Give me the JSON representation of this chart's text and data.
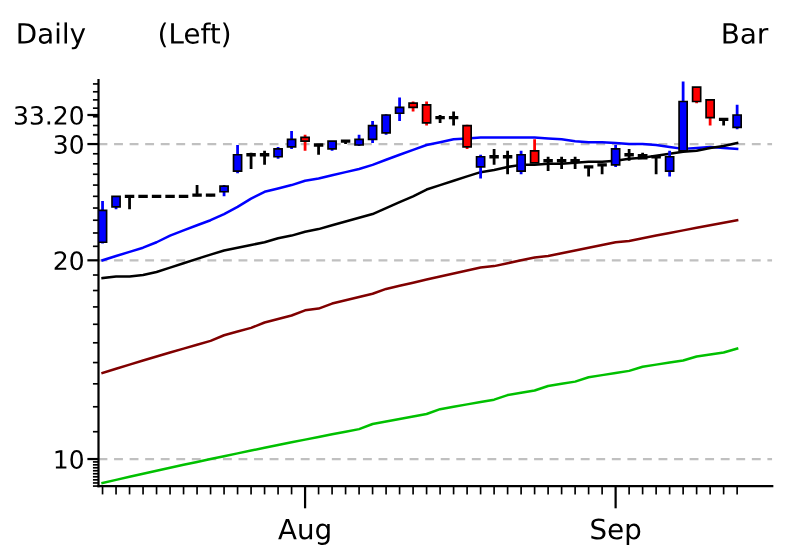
{
  "chart_data": {
    "type": "candlestick",
    "title": "Daily",
    "annotations": [
      "(Left)",
      "Bar"
    ],
    "categories": [
      null,
      null,
      null,
      null,
      null,
      null,
      null,
      null,
      null,
      null,
      null,
      null,
      null,
      null,
      null,
      "Aug",
      null,
      null,
      null,
      null,
      null,
      null,
      null,
      null,
      null,
      null,
      null,
      null,
      null,
      null,
      null,
      null,
      null,
      null,
      null,
      null,
      null,
      null,
      "Sep",
      null,
      null,
      null,
      null,
      null,
      null,
      null,
      null,
      null
    ],
    "ohlc": [
      [
        21.3,
        24.6,
        21.2,
        23.8
      ],
      [
        24.1,
        25.0,
        23.9,
        25.0
      ],
      [
        25.0,
        25.1,
        23.9,
        25.0
      ],
      [
        25.0,
        25.1,
        24.9,
        25.0
      ],
      [
        25.0,
        25.1,
        24.9,
        25.0
      ],
      [
        25.0,
        25.1,
        24.9,
        25.0
      ],
      [
        25.0,
        25.1,
        24.9,
        25.0
      ],
      [
        25.1,
        26.0,
        25.0,
        25.1
      ],
      [
        25.1,
        25.2,
        25.0,
        25.1
      ],
      [
        25.4,
        26.0,
        25.0,
        25.9
      ],
      [
        27.3,
        29.9,
        27.1,
        28.9
      ],
      [
        28.9,
        29.1,
        27.5,
        28.9
      ],
      [
        28.9,
        29.3,
        27.9,
        28.9
      ],
      [
        28.7,
        29.7,
        28.5,
        29.5
      ],
      [
        29.7,
        31.4,
        29.5,
        30.5
      ],
      [
        30.7,
        31.0,
        29.3,
        30.3
      ],
      [
        29.9,
        29.9,
        28.9,
        29.9
      ],
      [
        29.5,
        30.3,
        29.3,
        30.3
      ],
      [
        30.3,
        30.4,
        30.0,
        30.3
      ],
      [
        29.9,
        31.0,
        29.8,
        30.5
      ],
      [
        30.5,
        32.5,
        30.1,
        32.0
      ],
      [
        31.2,
        33.3,
        31.0,
        33.2
      ],
      [
        33.4,
        35.3,
        32.5,
        34.1
      ],
      [
        34.6,
        34.8,
        33.6,
        34.1
      ],
      [
        34.4,
        34.8,
        32.0,
        32.3
      ],
      [
        32.9,
        33.2,
        32.3,
        32.9
      ],
      [
        32.9,
        33.6,
        32.0,
        32.9
      ],
      [
        32.0,
        32.1,
        29.5,
        29.7
      ],
      [
        27.7,
        28.9,
        26.6,
        28.7
      ],
      [
        28.7,
        29.5,
        27.9,
        28.7
      ],
      [
        28.7,
        29.3,
        27.0,
        28.7
      ],
      [
        27.3,
        29.3,
        27.0,
        28.9
      ],
      [
        29.3,
        30.5,
        28.1,
        28.1
      ],
      [
        28.3,
        28.7,
        27.3,
        28.3
      ],
      [
        28.3,
        28.7,
        27.5,
        28.3
      ],
      [
        28.3,
        28.7,
        27.5,
        28.3
      ],
      [
        27.7,
        27.7,
        26.8,
        27.7
      ],
      [
        27.9,
        27.9,
        27.0,
        27.9
      ],
      [
        27.9,
        29.9,
        27.7,
        29.5
      ],
      [
        28.9,
        29.5,
        28.3,
        28.9
      ],
      [
        28.9,
        29.1,
        28.5,
        28.5
      ],
      [
        28.7,
        28.7,
        27.0,
        28.7
      ],
      [
        27.3,
        29.3,
        26.8,
        28.7
      ],
      [
        29.3,
        37.3,
        29.3,
        34.8
      ],
      [
        36.6,
        36.6,
        34.6,
        34.8
      ],
      [
        35.0,
        35.0,
        32.0,
        32.9
      ],
      [
        32.7,
        32.7,
        32.0,
        32.7
      ],
      [
        31.8,
        34.4,
        31.6,
        33.2
      ]
    ],
    "colors": [
      "#0000ff",
      "#0000ff",
      "#000000",
      "#000000",
      "#000000",
      "#000000",
      "#000000",
      "#000000",
      "#000000",
      "#0000ff",
      "#0000ff",
      "#000000",
      "#000000",
      "#0000ff",
      "#0000ff",
      "#ff0000",
      "#000000",
      "#0000ff",
      "#000000",
      "#0000ff",
      "#0000ff",
      "#0000ff",
      "#0000ff",
      "#ff0000",
      "#ff0000",
      "#000000",
      "#000000",
      "#ff0000",
      "#0000ff",
      "#000000",
      "#000000",
      "#0000ff",
      "#ff0000",
      "#000000",
      "#000000",
      "#000000",
      "#000000",
      "#000000",
      "#0000ff",
      "#000000",
      "#000000",
      "#000000",
      "#0000ff",
      "#0000ff",
      "#ff0000",
      "#ff0000",
      "#000000",
      "#0000ff"
    ],
    "series": [
      {
        "type": "line",
        "color": "#0000ff",
        "values": [
          20.0,
          20.3,
          20.6,
          20.9,
          21.3,
          21.8,
          22.2,
          22.6,
          23.0,
          23.5,
          24.1,
          24.8,
          25.4,
          25.7,
          26.0,
          26.4,
          26.6,
          26.9,
          27.2,
          27.5,
          27.9,
          28.4,
          28.9,
          29.4,
          29.9,
          30.2,
          30.5,
          30.6,
          30.7,
          30.7,
          30.7,
          30.7,
          30.7,
          30.6,
          30.5,
          30.3,
          30.2,
          30.2,
          30.1,
          30.0,
          30.0,
          29.9,
          29.7,
          29.5,
          29.6,
          29.7,
          29.6,
          29.5
        ]
      },
      {
        "type": "line",
        "color": "#000000",
        "values": [
          18.8,
          18.9,
          18.9,
          19.0,
          19.2,
          19.5,
          19.8,
          20.1,
          20.4,
          20.7,
          20.9,
          21.1,
          21.3,
          21.6,
          21.8,
          22.1,
          22.3,
          22.6,
          22.9,
          23.2,
          23.5,
          24.0,
          24.5,
          25.0,
          25.6,
          26.0,
          26.4,
          26.8,
          27.2,
          27.4,
          27.7,
          27.9,
          27.9,
          28.0,
          28.0,
          28.1,
          28.2,
          28.2,
          28.3,
          28.5,
          28.6,
          28.8,
          29.0,
          29.2,
          29.3,
          29.6,
          29.8,
          30.1
        ]
      },
      {
        "type": "line",
        "color": "#800000",
        "values": [
          13.5,
          13.7,
          13.9,
          14.1,
          14.3,
          14.5,
          14.7,
          14.9,
          15.1,
          15.4,
          15.6,
          15.8,
          16.1,
          16.3,
          16.5,
          16.8,
          16.9,
          17.2,
          17.4,
          17.6,
          17.8,
          18.1,
          18.3,
          18.5,
          18.7,
          18.9,
          19.1,
          19.3,
          19.5,
          19.6,
          19.8,
          20.0,
          20.2,
          20.3,
          20.5,
          20.7,
          20.9,
          21.1,
          21.3,
          21.4,
          21.6,
          21.8,
          22.0,
          22.2,
          22.4,
          22.6,
          22.8,
          23.0
        ]
      },
      {
        "type": "line",
        "color": "#00c000",
        "values": [
          9.2,
          9.3,
          9.4,
          9.5,
          9.6,
          9.7,
          9.8,
          9.9,
          10.0,
          10.1,
          10.2,
          10.3,
          10.4,
          10.5,
          10.6,
          10.7,
          10.8,
          10.9,
          11.0,
          11.1,
          11.3,
          11.4,
          11.5,
          11.6,
          11.7,
          11.9,
          12.0,
          12.1,
          12.2,
          12.3,
          12.5,
          12.6,
          12.7,
          12.9,
          13.0,
          13.1,
          13.3,
          13.4,
          13.5,
          13.6,
          13.8,
          13.9,
          14.0,
          14.1,
          14.3,
          14.4,
          14.5,
          14.7
        ]
      }
    ],
    "log": "y",
    "ylim": [
      9.1,
      37.5
    ],
    "yticks": [
      10,
      20,
      30,
      {
        "value": 33.2,
        "label": "33.20"
      }
    ],
    "ref_lines": [
      {
        "axis": "y",
        "value": 10,
        "color": "#c0c0c0",
        "line_style": "dashed"
      },
      {
        "axis": "y",
        "value": 20,
        "color": "#c0c0c0",
        "line_style": "dashed"
      },
      {
        "axis": "y",
        "value": 30,
        "color": "#c0c0c0",
        "line_style": "dashed"
      }
    ]
  }
}
